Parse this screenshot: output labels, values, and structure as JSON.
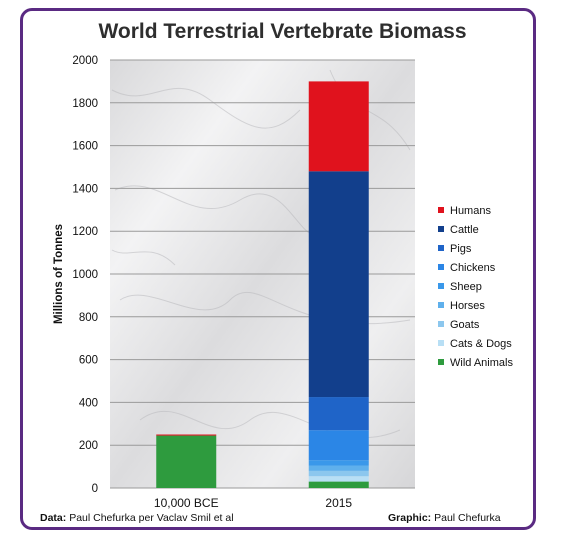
{
  "colors": {
    "border": "#5a2a82",
    "gridline": "#9a9a9a"
  },
  "chart_data": {
    "type": "bar",
    "stacked": true,
    "title": "World Terrestrial Vertebrate Biomass",
    "ylabel": "Millions of Tonnes",
    "xlabel": "",
    "ylim": [
      0,
      2000
    ],
    "yticks": [
      0,
      200,
      400,
      600,
      800,
      1000,
      1200,
      1400,
      1600,
      1800,
      2000
    ],
    "yticklabels": [
      "0",
      "200",
      "400",
      "600",
      "800",
      "1000",
      "1200",
      "1400",
      "1600",
      "1800",
      "2000"
    ],
    "grid": true,
    "background": "marble texture",
    "legend_position": "right",
    "categories": [
      "10,000 BCE",
      "2015"
    ],
    "series": [
      {
        "name": "Wild Animals",
        "color": "#2e9b3e",
        "values": [
          245,
          30
        ]
      },
      {
        "name": "Cats & Dogs",
        "color": "#b8dff5",
        "values": [
          0,
          25
        ]
      },
      {
        "name": "Goats",
        "color": "#8cc7ee",
        "values": [
          0,
          25
        ]
      },
      {
        "name": "Horses",
        "color": "#5fb0ec",
        "values": [
          0,
          25
        ]
      },
      {
        "name": "Sheep",
        "color": "#3a98ea",
        "values": [
          0,
          25
        ]
      },
      {
        "name": "Chickens",
        "color": "#2b86e6",
        "values": [
          0,
          140
        ]
      },
      {
        "name": "Pigs",
        "color": "#1f64c8",
        "values": [
          0,
          155
        ]
      },
      {
        "name": "Cattle",
        "color": "#123f8c",
        "values": [
          0,
          1055
        ]
      },
      {
        "name": "Humans",
        "color": "#e0121d",
        "values": [
          5,
          420
        ]
      }
    ],
    "legend_order": [
      "Humans",
      "Cattle",
      "Pigs",
      "Chickens",
      "Sheep",
      "Horses",
      "Goats",
      "Cats & Dogs",
      "Wild Animals"
    ]
  },
  "footer": {
    "data_label": "Data:",
    "data_text": "Paul Chefurka per Vaclav Smil et al",
    "graphic_label": "Graphic:",
    "graphic_text": "Paul Chefurka"
  }
}
